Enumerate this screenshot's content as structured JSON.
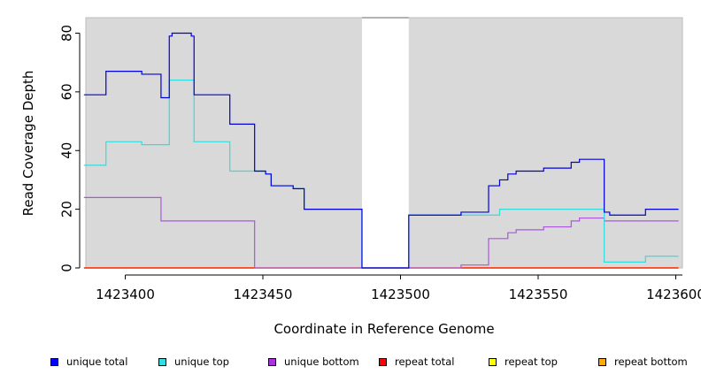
{
  "chart_data": {
    "type": "line",
    "title": "",
    "xlabel": "Coordinate in Reference Genome",
    "ylabel": "Read Coverage Depth",
    "xlim": [
      1423385,
      1423601
    ],
    "ylim": [
      0,
      85
    ],
    "x_ticks": [
      1423400,
      1423450,
      1423500,
      1423550,
      1423600
    ],
    "x_tick_labels": [
      "1423400",
      "1423450",
      "1423500",
      "1423550",
      "1423600"
    ],
    "y_ticks": [
      0,
      20,
      40,
      60,
      80
    ],
    "y_tick_labels": [
      "0",
      "20",
      "40",
      "60",
      "80"
    ],
    "gap_region": [
      1423486,
      1423503
    ],
    "background_color": "#d9d9d9",
    "legend_position": "bottom",
    "series": [
      {
        "name": "unique total",
        "color": "#0000dd",
        "steps": [
          [
            1423385,
            59
          ],
          [
            1423393,
            67
          ],
          [
            1423406,
            66
          ],
          [
            1423413,
            58
          ],
          [
            1423416,
            79
          ],
          [
            1423417,
            80
          ],
          [
            1423424,
            79
          ],
          [
            1423425,
            59
          ],
          [
            1423438,
            49
          ],
          [
            1423447,
            33
          ],
          [
            1423451,
            32
          ],
          [
            1423453,
            28
          ],
          [
            1423461,
            27
          ],
          [
            1423465,
            20
          ],
          [
            1423486,
            0
          ],
          [
            1423503,
            18
          ],
          [
            1423522,
            19
          ],
          [
            1423532,
            28
          ],
          [
            1423536,
            30
          ],
          [
            1423539,
            32
          ],
          [
            1423542,
            33
          ],
          [
            1423552,
            34
          ],
          [
            1423562,
            36
          ],
          [
            1423565,
            37
          ],
          [
            1423574,
            19
          ],
          [
            1423576,
            18
          ],
          [
            1423589,
            20
          ],
          [
            1423601,
            20
          ]
        ]
      },
      {
        "name": "unique top",
        "color": "#33dddd",
        "steps": [
          [
            1423385,
            35
          ],
          [
            1423393,
            43
          ],
          [
            1423406,
            42
          ],
          [
            1423416,
            64
          ],
          [
            1423425,
            43
          ],
          [
            1423438,
            33
          ],
          [
            1423447,
            33
          ],
          [
            1423451,
            32
          ],
          [
            1423453,
            28
          ],
          [
            1423461,
            27
          ],
          [
            1423465,
            20
          ],
          [
            1423486,
            0
          ],
          [
            1423503,
            18
          ],
          [
            1423536,
            20
          ],
          [
            1423574,
            2
          ],
          [
            1423589,
            4
          ],
          [
            1423601,
            4
          ]
        ]
      },
      {
        "name": "unique bottom",
        "color": "#aa55dd",
        "steps": [
          [
            1423385,
            24
          ],
          [
            1423413,
            16
          ],
          [
            1423447,
            0
          ],
          [
            1423522,
            1
          ],
          [
            1423532,
            10
          ],
          [
            1423536,
            10
          ],
          [
            1423539,
            12
          ],
          [
            1423542,
            13
          ],
          [
            1423552,
            14
          ],
          [
            1423562,
            16
          ],
          [
            1423565,
            17
          ],
          [
            1423574,
            16
          ],
          [
            1423601,
            16
          ]
        ]
      },
      {
        "name": "repeat total",
        "color": "#ff0000",
        "steps": [
          [
            1423385,
            0
          ],
          [
            1423601,
            0
          ]
        ]
      },
      {
        "name": "repeat top",
        "color": "#ffff00",
        "steps": [
          [
            1423385,
            0
          ],
          [
            1423601,
            0
          ]
        ]
      },
      {
        "name": "repeat bottom",
        "color": "#ffaa00",
        "steps": [
          [
            1423385,
            0
          ],
          [
            1423601,
            0
          ]
        ]
      }
    ]
  },
  "legend": [
    {
      "label": "unique total",
      "color": "#0000ff"
    },
    {
      "label": "unique top",
      "color": "#33dddd"
    },
    {
      "label": "unique bottom",
      "color": "#aa33dd"
    },
    {
      "label": "repeat total",
      "color": "#ff0000"
    },
    {
      "label": "repeat top",
      "color": "#ffff00"
    },
    {
      "label": "repeat bottom",
      "color": "#ffaa00"
    }
  ]
}
